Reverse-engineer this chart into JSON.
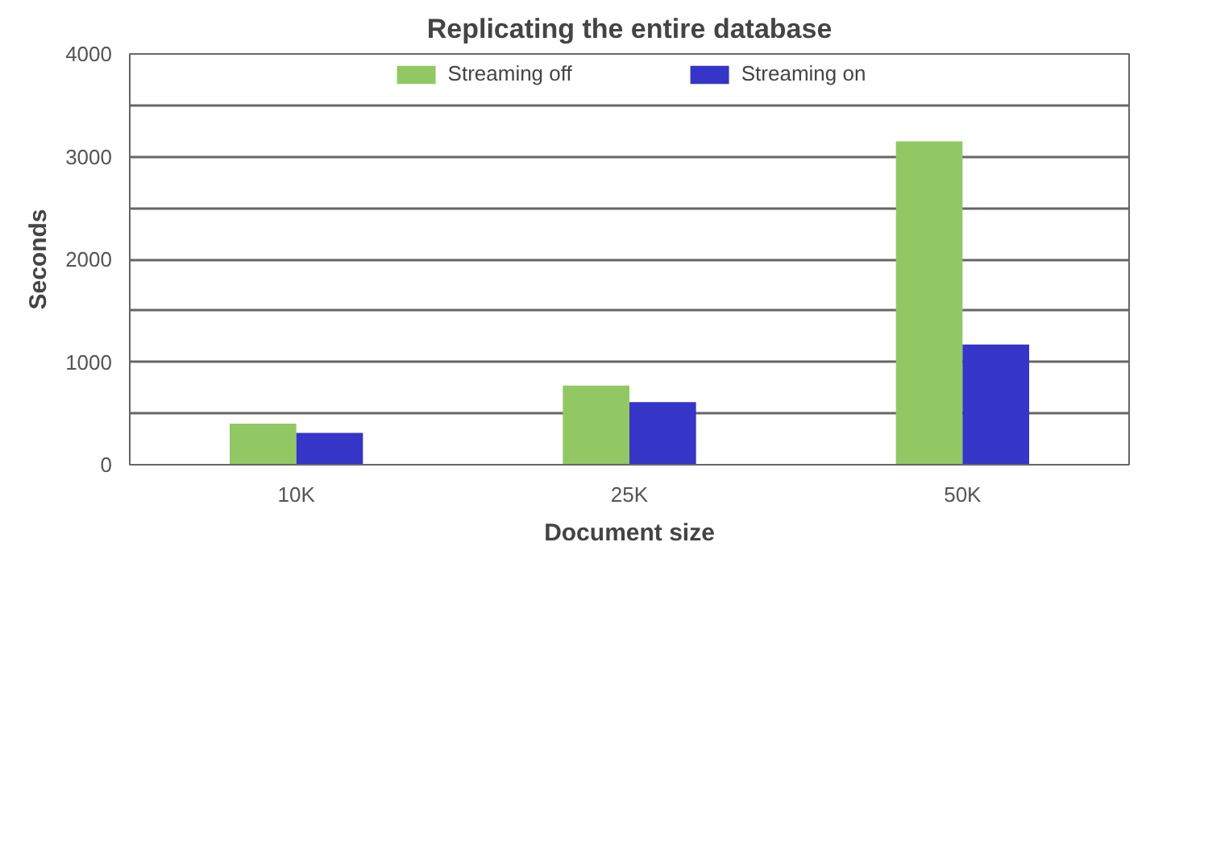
{
  "chart_data": {
    "type": "bar",
    "title": "Replicating the entire database",
    "xlabel": "Document size",
    "ylabel": "Seconds",
    "categories": [
      "10K",
      "25K",
      "50K"
    ],
    "series": [
      {
        "name": "Streaming off",
        "color": "#92c864",
        "values": [
          400,
          770,
          3150
        ]
      },
      {
        "name": "Streaming on",
        "color": "#3535c8",
        "values": [
          310,
          610,
          1170
        ]
      }
    ],
    "ylim": [
      0,
      4000
    ],
    "yticks": [
      0,
      {
        "value": 500,
        "label": null
      },
      1000,
      {
        "value": 1500,
        "label": null
      },
      2000,
      {
        "value": 2500,
        "label": null
      },
      3000,
      {
        "value": 3500,
        "label": null
      },
      4000
    ],
    "grid": "y",
    "legend": "top"
  }
}
